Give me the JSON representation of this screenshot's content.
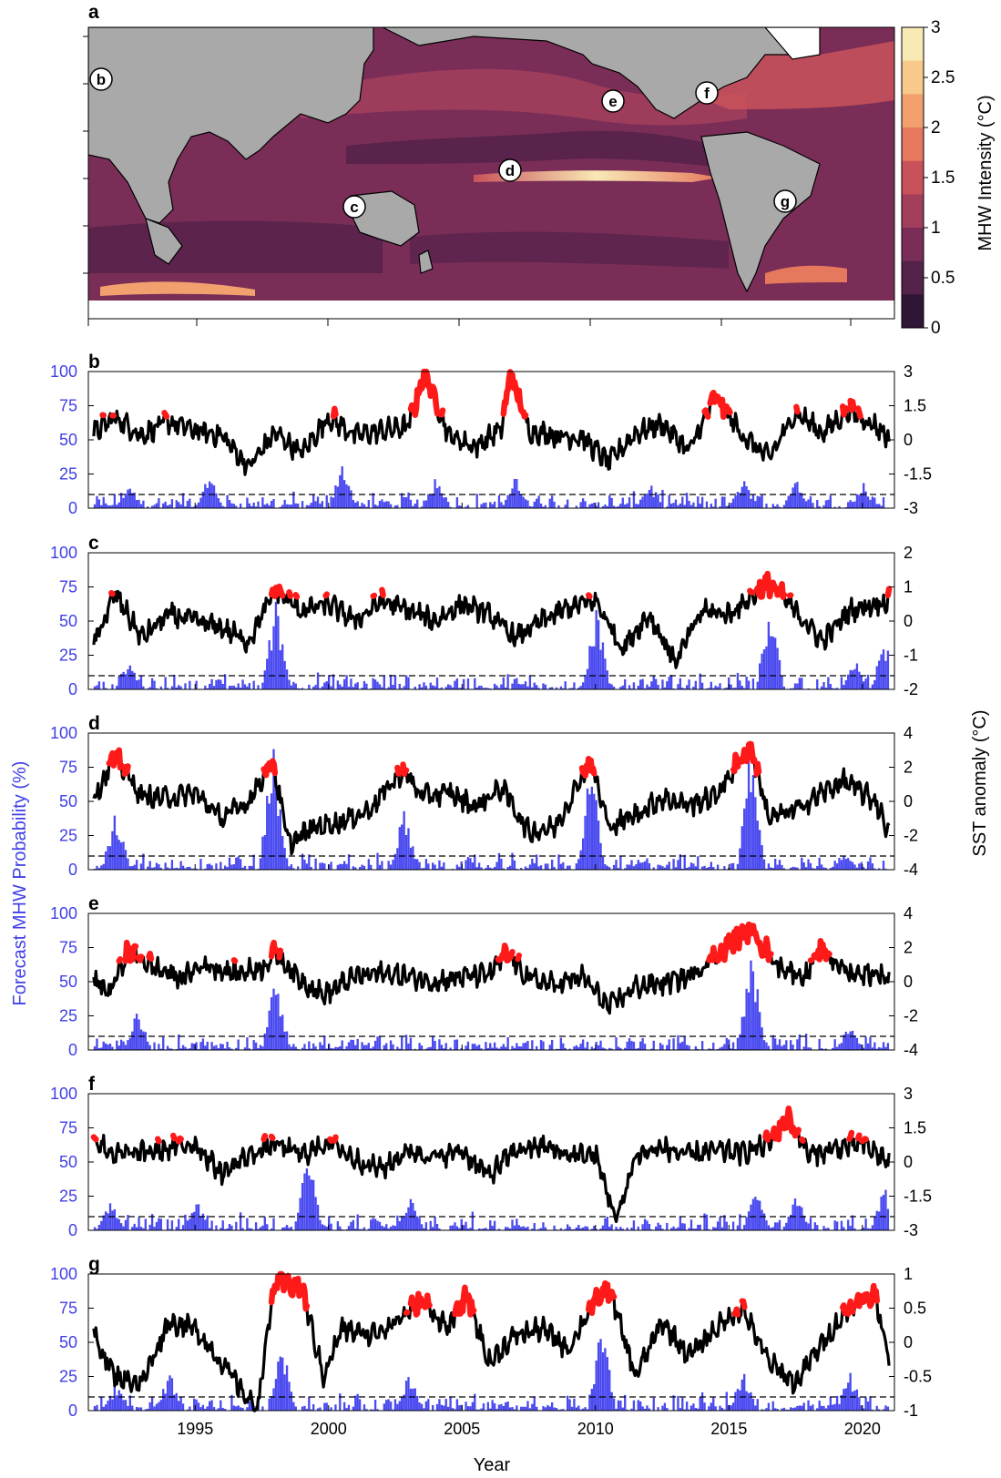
{
  "map": {
    "label": "a",
    "colorbar": {
      "title": "MHW Intensity (°C)",
      "ticks": [
        "3",
        "2.5",
        "2",
        "1.5",
        "1",
        "0.5",
        "0"
      ],
      "colors": [
        "#f9e9b5",
        "#f7c98a",
        "#f3a06f",
        "#e6785e",
        "#c9525a",
        "#a23e5c",
        "#7a2e57",
        "#55224a",
        "#2f1536"
      ]
    },
    "site_labels": [
      "b",
      "c",
      "d",
      "e",
      "f",
      "g"
    ]
  },
  "colors": {
    "bars": "#4a4af0",
    "line": "#000000",
    "highlight": "#ff1a1a",
    "left_axis": "#4040e6",
    "land": "#a9a9a9"
  },
  "left_axis_label": "Forecast MHW Probability (%)",
  "right_axis_label": "SST anomaly (°C)",
  "xlabel": "Year",
  "xticks": [
    "1995",
    "2000",
    "2005",
    "2010",
    "2015",
    "2020"
  ],
  "chart_data": [
    {
      "panel": "b",
      "type": "bar+line",
      "left_ticks": [
        "100",
        "75",
        "50",
        "25",
        "0"
      ],
      "right_ticks": [
        "3",
        "1.5",
        "0",
        "-1.5",
        "-3"
      ],
      "ylim_left": [
        0,
        100
      ],
      "ylim_right": [
        -3,
        3
      ],
      "threshold": 10,
      "x_range": [
        1991,
        2021.2
      ],
      "bar_peaks": [
        [
          1992.5,
          20
        ],
        [
          1995.5,
          25
        ],
        [
          2000.5,
          35
        ],
        [
          2004,
          25
        ],
        [
          2007,
          25
        ],
        [
          2012,
          20
        ],
        [
          2015.5,
          25
        ],
        [
          2017.5,
          25
        ],
        [
          2020,
          20
        ]
      ],
      "sst_keypoints": [
        [
          1991.2,
          0.3
        ],
        [
          1992,
          1.0
        ],
        [
          1993,
          0.2
        ],
        [
          1994,
          0.8
        ],
        [
          1995,
          0.4
        ],
        [
          1996,
          0.2
        ],
        [
          1997,
          -1.2
        ],
        [
          1998,
          0.3
        ],
        [
          1999,
          -0.6
        ],
        [
          2000,
          1.0
        ],
        [
          2001,
          0.2
        ],
        [
          2002,
          0.4
        ],
        [
          2003,
          0.6
        ],
        [
          2003.6,
          3.0
        ],
        [
          2004.5,
          0.2
        ],
        [
          2005.5,
          -0.3
        ],
        [
          2006.5,
          0.5
        ],
        [
          2006.8,
          3.0
        ],
        [
          2007.5,
          0.4
        ],
        [
          2008.5,
          0.2
        ],
        [
          2009.5,
          0.1
        ],
        [
          2010.5,
          -1.0
        ],
        [
          2011.5,
          0.3
        ],
        [
          2012.5,
          0.7
        ],
        [
          2013.5,
          -0.5
        ],
        [
          2014.5,
          1.9
        ],
        [
          2015.5,
          0.2
        ],
        [
          2016.5,
          -0.8
        ],
        [
          2017.5,
          1.2
        ],
        [
          2018.5,
          0.3
        ],
        [
          2019.5,
          1.3
        ],
        [
          2020.5,
          0.6
        ],
        [
          2021,
          0.1
        ]
      ],
      "mhw_threshold_anom": 1.0
    },
    {
      "panel": "c",
      "type": "bar+line",
      "left_ticks": [
        "100",
        "75",
        "50",
        "25",
        "0"
      ],
      "right_ticks": [
        "2",
        "1",
        "0",
        "-1",
        "-2"
      ],
      "ylim_left": [
        0,
        100
      ],
      "ylim_right": [
        -2,
        2
      ],
      "threshold": 10,
      "x_range": [
        1991,
        2021.2
      ],
      "bar_peaks": [
        [
          1992.5,
          22
        ],
        [
          1998,
          70
        ],
        [
          2010,
          65
        ],
        [
          2016.5,
          65
        ],
        [
          2019.7,
          22
        ],
        [
          2020.8,
          37
        ]
      ],
      "sst_keypoints": [
        [
          1991.2,
          -0.7
        ],
        [
          1992,
          0.8
        ],
        [
          1993,
          -0.5
        ],
        [
          1994,
          0.2
        ],
        [
          1995,
          0
        ],
        [
          1996,
          -0.2
        ],
        [
          1997,
          -0.6
        ],
        [
          1998,
          0.9
        ],
        [
          1999,
          0.3
        ],
        [
          2000,
          0.5
        ],
        [
          2001,
          0
        ],
        [
          2002,
          0.6
        ],
        [
          2003,
          0.3
        ],
        [
          2004,
          0
        ],
        [
          2005,
          0.5
        ],
        [
          2006,
          0.2
        ],
        [
          2007,
          -0.5
        ],
        [
          2008,
          0
        ],
        [
          2009,
          0.4
        ],
        [
          2010,
          0.6
        ],
        [
          2011,
          -0.8
        ],
        [
          2012,
          0.2
        ],
        [
          2013,
          -1.2
        ],
        [
          2014,
          0.3
        ],
        [
          2015,
          0.2
        ],
        [
          2016.5,
          1.1
        ],
        [
          2017.5,
          0.3
        ],
        [
          2018.5,
          -0.6
        ],
        [
          2019.5,
          0.3
        ],
        [
          2020.5,
          0.5
        ],
        [
          2021,
          0.6
        ]
      ],
      "mhw_threshold_anom": 0.7
    },
    {
      "panel": "d",
      "type": "bar+line",
      "left_ticks": [
        "100",
        "75",
        "50",
        "25",
        "0"
      ],
      "right_ticks": [
        "4",
        "2",
        "0",
        "-2",
        "-4"
      ],
      "ylim_left": [
        0,
        100
      ],
      "ylim_right": [
        -4,
        4
      ],
      "threshold": 10,
      "x_range": [
        1991,
        2021.2
      ],
      "bar_peaks": [
        [
          1992,
          45
        ],
        [
          1997.9,
          97
        ],
        [
          2002.8,
          47
        ],
        [
          2009.8,
          80
        ],
        [
          2015.8,
          100
        ],
        [
          2019.3,
          15
        ]
      ],
      "sst_keypoints": [
        [
          1991.2,
          0.2
        ],
        [
          1992,
          2.6
        ],
        [
          1993,
          0.3
        ],
        [
          1994,
          0.2
        ],
        [
          1995,
          0.5
        ],
        [
          1996,
          -1.0
        ],
        [
          1997,
          0
        ],
        [
          1997.9,
          2.4
        ],
        [
          1998.5,
          -2.5
        ],
        [
          1999.5,
          -1.5
        ],
        [
          2000.5,
          -1.2
        ],
        [
          2001.5,
          -0.5
        ],
        [
          2002.8,
          1.8
        ],
        [
          2003.5,
          0.3
        ],
        [
          2004.5,
          0.5
        ],
        [
          2005.5,
          -0.3
        ],
        [
          2006.5,
          0.8
        ],
        [
          2007.5,
          -1.8
        ],
        [
          2008.5,
          -1.5
        ],
        [
          2009.8,
          2.4
        ],
        [
          2010.5,
          -1.5
        ],
        [
          2011.5,
          -0.8
        ],
        [
          2012.5,
          0.2
        ],
        [
          2013.5,
          -0.2
        ],
        [
          2014.5,
          0.3
        ],
        [
          2015.8,
          3.3
        ],
        [
          2016.5,
          -1.0
        ],
        [
          2017.5,
          -0.5
        ],
        [
          2018.5,
          0.5
        ],
        [
          2019.3,
          1.2
        ],
        [
          2020.5,
          0
        ],
        [
          2021,
          -1.8
        ]
      ],
      "mhw_threshold_anom": 1.5
    },
    {
      "panel": "e",
      "type": "bar+line",
      "left_ticks": [
        "100",
        "75",
        "50",
        "25",
        "0"
      ],
      "right_ticks": [
        "4",
        "2",
        "0",
        "-2",
        "-4"
      ],
      "ylim_left": [
        0,
        100
      ],
      "ylim_right": [
        -4,
        4
      ],
      "threshold": 10,
      "x_range": [
        1991,
        2021.2
      ],
      "bar_peaks": [
        [
          1992.8,
          30
        ],
        [
          1998,
          58
        ],
        [
          2015.8,
          80
        ],
        [
          2019.5,
          20
        ]
      ],
      "sst_keypoints": [
        [
          1991.2,
          0
        ],
        [
          1991.8,
          -0.6
        ],
        [
          1992.5,
          1.8
        ],
        [
          1993.5,
          0.8
        ],
        [
          1994.5,
          0.2
        ],
        [
          1995.3,
          1.0
        ],
        [
          1996.5,
          0.5
        ],
        [
          1997.5,
          0.8
        ],
        [
          1998,
          1.7
        ],
        [
          1998.8,
          0.3
        ],
        [
          1999.8,
          -0.8
        ],
        [
          2001,
          0.3
        ],
        [
          2002,
          0.5
        ],
        [
          2003,
          0.3
        ],
        [
          2004,
          0
        ],
        [
          2005,
          0.3
        ],
        [
          2006,
          0.4
        ],
        [
          2006.7,
          1.6
        ],
        [
          2007.5,
          0.2
        ],
        [
          2008.5,
          -0.2
        ],
        [
          2009.5,
          0.3
        ],
        [
          2010.5,
          -1.5
        ],
        [
          2011.5,
          -0.3
        ],
        [
          2012.5,
          -0.1
        ],
        [
          2013.5,
          0.3
        ],
        [
          2014.5,
          1.5
        ],
        [
          2015.8,
          3.1
        ],
        [
          2016.8,
          1.0
        ],
        [
          2017.8,
          0.3
        ],
        [
          2018.5,
          1.8
        ],
        [
          2019.5,
          0.5
        ],
        [
          2020.5,
          0.5
        ],
        [
          2021,
          0.2
        ]
      ],
      "mhw_threshold_anom": 1.2
    },
    {
      "panel": "f",
      "type": "bar+line",
      "left_ticks": [
        "100",
        "75",
        "50",
        "25",
        "0"
      ],
      "right_ticks": [
        "3",
        "1.5",
        "0",
        "-1.5",
        "-3"
      ],
      "ylim_left": [
        0,
        100
      ],
      "ylim_right": [
        -3,
        3
      ],
      "threshold": 10,
      "x_range": [
        1991,
        2021.2
      ],
      "bar_peaks": [
        [
          1991.8,
          22
        ],
        [
          1995,
          25
        ],
        [
          1999.2,
          60
        ],
        [
          2003,
          28
        ],
        [
          2016,
          35
        ],
        [
          2017.5,
          30
        ],
        [
          2020.8,
          35
        ]
      ],
      "sst_keypoints": [
        [
          1991.2,
          1.0
        ],
        [
          1992,
          0.3
        ],
        [
          1993,
          0.4
        ],
        [
          1994,
          0.6
        ],
        [
          1995,
          0.8
        ],
        [
          1996,
          -0.5
        ],
        [
          1997,
          0.3
        ],
        [
          1998,
          0.8
        ],
        [
          1999,
          0.3
        ],
        [
          2000,
          0.9
        ],
        [
          2001,
          0.1
        ],
        [
          2002,
          -0.3
        ],
        [
          2003,
          0.5
        ],
        [
          2004,
          0.2
        ],
        [
          2005,
          0.5
        ],
        [
          2006,
          -0.6
        ],
        [
          2007,
          0.5
        ],
        [
          2008,
          0.7
        ],
        [
          2009,
          0.3
        ],
        [
          2010,
          0.3
        ],
        [
          2010.8,
          -2.6
        ],
        [
          2011.5,
          0.3
        ],
        [
          2012.5,
          0.6
        ],
        [
          2013.5,
          0.3
        ],
        [
          2014.5,
          0.5
        ],
        [
          2015.5,
          0.4
        ],
        [
          2016.5,
          0.8
        ],
        [
          2017.2,
          2.0
        ],
        [
          2018,
          0.3
        ],
        [
          2019,
          0.6
        ],
        [
          2020,
          0.8
        ],
        [
          2021,
          0
        ]
      ],
      "mhw_threshold_anom": 0.9
    },
    {
      "panel": "g",
      "type": "bar+line",
      "left_ticks": [
        "100",
        "75",
        "50",
        "25",
        "0"
      ],
      "right_ticks": [
        "1",
        "0.5",
        "0",
        "-0.5",
        "-1"
      ],
      "ylim_left": [
        0,
        100
      ],
      "ylim_right": [
        -1,
        1
      ],
      "threshold": 10,
      "x_range": [
        1991,
        2021.2
      ],
      "bar_peaks": [
        [
          1992,
          20
        ],
        [
          1994,
          30
        ],
        [
          1998.2,
          60
        ],
        [
          2003,
          30
        ],
        [
          2010.2,
          70
        ],
        [
          2015.5,
          30
        ],
        [
          2019.5,
          30
        ]
      ],
      "sst_keypoints": [
        [
          1991.2,
          0.1
        ],
        [
          1992,
          -0.5
        ],
        [
          1993,
          -0.6
        ],
        [
          1994,
          0.3
        ],
        [
          1995,
          0.2
        ],
        [
          1996,
          -0.3
        ],
        [
          1997.3,
          -1.0
        ],
        [
          1998,
          0.9
        ],
        [
          1999,
          0.8
        ],
        [
          1999.8,
          -0.5
        ],
        [
          2000.5,
          0.2
        ],
        [
          2001.5,
          0.1
        ],
        [
          2002.5,
          0.3
        ],
        [
          2003.5,
          0.6
        ],
        [
          2004.5,
          0.2
        ],
        [
          2005.2,
          0.7
        ],
        [
          2006,
          -0.3
        ],
        [
          2007,
          0.1
        ],
        [
          2008,
          0.2
        ],
        [
          2009,
          -0.1
        ],
        [
          2009.8,
          0.5
        ],
        [
          2010.5,
          0.8
        ],
        [
          2011.5,
          -0.5
        ],
        [
          2012.5,
          0.3
        ],
        [
          2013.5,
          -0.2
        ],
        [
          2014.5,
          0.2
        ],
        [
          2015.5,
          0.5
        ],
        [
          2016.5,
          -0.3
        ],
        [
          2017.5,
          -0.6
        ],
        [
          2018.5,
          0
        ],
        [
          2019.5,
          0.5
        ],
        [
          2020.5,
          0.7
        ],
        [
          2021,
          -0.3
        ]
      ],
      "mhw_threshold_anom": 0.4
    }
  ]
}
